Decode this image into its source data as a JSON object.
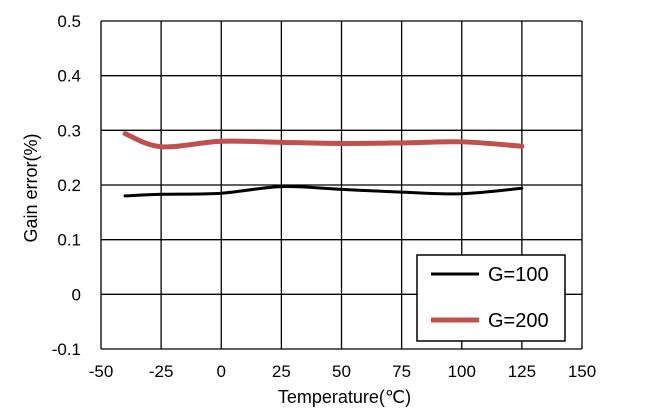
{
  "chart_data": {
    "type": "line",
    "title": "",
    "xlabel": "Temperature(℃)",
    "ylabel": "Gain error(%)",
    "xlim": [
      -50,
      150
    ],
    "ylim": [
      -0.1,
      0.5
    ],
    "xticks": [
      -50,
      -25,
      0,
      25,
      50,
      75,
      100,
      125,
      150
    ],
    "xtick_labels": [
      "-50",
      "-25",
      "0",
      "25",
      "50",
      "75",
      "100",
      "125",
      "150"
    ],
    "yticks": [
      -0.1,
      0,
      0.1,
      0.2,
      0.3,
      0.4,
      0.5
    ],
    "ytick_labels": [
      "-0.1",
      "0",
      "0.1",
      "0.2",
      "0.3",
      "0.4",
      "0.5"
    ],
    "grid": true,
    "legend_position": "bottom-right",
    "series": [
      {
        "name": "G=100",
        "color": "#000000",
        "x": [
          -40,
          -25,
          0,
          25,
          50,
          75,
          100,
          125
        ],
        "y": [
          0.18,
          0.183,
          0.185,
          0.197,
          0.192,
          0.187,
          0.184,
          0.194
        ]
      },
      {
        "name": "G=200",
        "color": "#c0504d",
        "x": [
          -40,
          -25,
          0,
          25,
          50,
          75,
          100,
          125
        ],
        "y": [
          0.294,
          0.27,
          0.28,
          0.278,
          0.276,
          0.277,
          0.279,
          0.271
        ]
      }
    ]
  }
}
